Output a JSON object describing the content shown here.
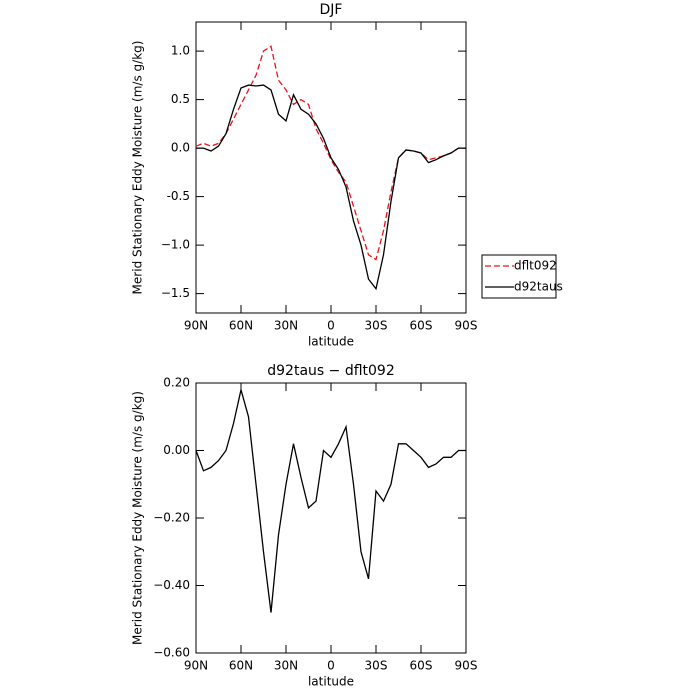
{
  "chart_data": [
    {
      "type": "line",
      "title": "DJF",
      "xlabel": "latitude",
      "ylabel": "Merid Stationary Eddy Moisture (m/s g/kg)",
      "x": [
        90,
        85,
        80,
        75,
        70,
        65,
        60,
        55,
        50,
        45,
        40,
        35,
        30,
        25,
        20,
        15,
        10,
        5,
        0,
        -5,
        -10,
        -15,
        -20,
        -25,
        -30,
        -35,
        -40,
        -45,
        -50,
        -55,
        -60,
        -65,
        -70,
        -75,
        -80,
        -85,
        -90
      ],
      "xlim": [
        90,
        -90
      ],
      "xticks": [
        {
          "value": 90,
          "label": "90N"
        },
        {
          "value": 60,
          "label": "60N"
        },
        {
          "value": 30,
          "label": "30N"
        },
        0,
        {
          "value": -30,
          "label": "30S"
        },
        {
          "value": -60,
          "label": "60S"
        },
        {
          "value": -90,
          "label": "90S"
        }
      ],
      "ylim": [
        -1.7,
        1.3
      ],
      "yticks": [
        {
          "value": 1.0,
          "label": "1.0"
        },
        0.5,
        {
          "value": 0.0,
          "label": "0.0"
        },
        -0.5,
        {
          "value": -1.0,
          "label": "−1.0"
        },
        {
          "value": -1.5,
          "label": "−1.5"
        }
      ],
      "legend": "outside-right",
      "series": [
        {
          "name": "dflt092",
          "color": "#e8141c",
          "dash": true,
          "values": [
            0.02,
            0.05,
            0.02,
            0.05,
            0.15,
            0.3,
            0.45,
            0.6,
            0.75,
            1.0,
            1.05,
            0.7,
            0.6,
            0.45,
            0.5,
            0.45,
            0.2,
            0.05,
            -0.12,
            -0.25,
            -0.35,
            -0.6,
            -0.85,
            -1.1,
            -1.15,
            -0.85,
            -0.45,
            -0.1,
            -0.02,
            -0.03,
            -0.05,
            -0.12,
            -0.1,
            -0.08,
            -0.05,
            0.0,
            0.0
          ]
        },
        {
          "name": "d92taus",
          "color": "#000000",
          "dash": false,
          "values": [
            0.0,
            0.0,
            -0.03,
            0.02,
            0.15,
            0.4,
            0.62,
            0.65,
            0.64,
            0.65,
            0.6,
            0.35,
            0.28,
            0.55,
            0.4,
            0.35,
            0.25,
            0.1,
            -0.1,
            -0.22,
            -0.4,
            -0.75,
            -1.0,
            -1.35,
            -1.45,
            -1.1,
            -0.55,
            -0.1,
            -0.02,
            -0.03,
            -0.05,
            -0.15,
            -0.12,
            -0.08,
            -0.05,
            0.0,
            0.0
          ]
        }
      ]
    },
    {
      "type": "line",
      "title": "d92taus − dflt092",
      "xlabel": "latitude",
      "ylabel": "Merid Stationary Eddy Moisture (m/s g/kg)",
      "x": [
        90,
        85,
        80,
        75,
        70,
        65,
        60,
        55,
        50,
        45,
        40,
        35,
        30,
        25,
        20,
        15,
        10,
        5,
        0,
        -5,
        -10,
        -15,
        -20,
        -25,
        -30,
        -35,
        -40,
        -45,
        -50,
        -55,
        -60,
        -65,
        -70,
        -75,
        -80,
        -85,
        -90
      ],
      "xlim": [
        90,
        -90
      ],
      "xticks": [
        {
          "value": 90,
          "label": "90N"
        },
        {
          "value": 60,
          "label": "60N"
        },
        {
          "value": 30,
          "label": "30N"
        },
        0,
        {
          "value": -30,
          "label": "30S"
        },
        {
          "value": -60,
          "label": "60S"
        },
        {
          "value": -90,
          "label": "90S"
        }
      ],
      "ylim": [
        -0.6,
        0.2
      ],
      "yticks": [
        {
          "value": 0.2,
          "label": "0.20"
        },
        {
          "value": 0.0,
          "label": "0.00"
        },
        {
          "value": -0.2,
          "label": "−0.20"
        },
        {
          "value": -0.4,
          "label": "−0.40"
        },
        {
          "value": -0.6,
          "label": "−0.60"
        }
      ],
      "color": "#000000",
      "values": [
        0.0,
        -0.06,
        -0.05,
        -0.03,
        0.0,
        0.08,
        0.18,
        0.1,
        -0.1,
        -0.3,
        -0.48,
        -0.25,
        -0.1,
        0.02,
        -0.08,
        -0.17,
        -0.15,
        0.0,
        -0.02,
        0.02,
        0.07,
        -0.1,
        -0.3,
        -0.38,
        -0.12,
        -0.15,
        -0.1,
        0.02,
        0.02,
        0.0,
        -0.02,
        -0.05,
        -0.04,
        -0.02,
        -0.02,
        0.0,
        0.0
      ]
    }
  ]
}
